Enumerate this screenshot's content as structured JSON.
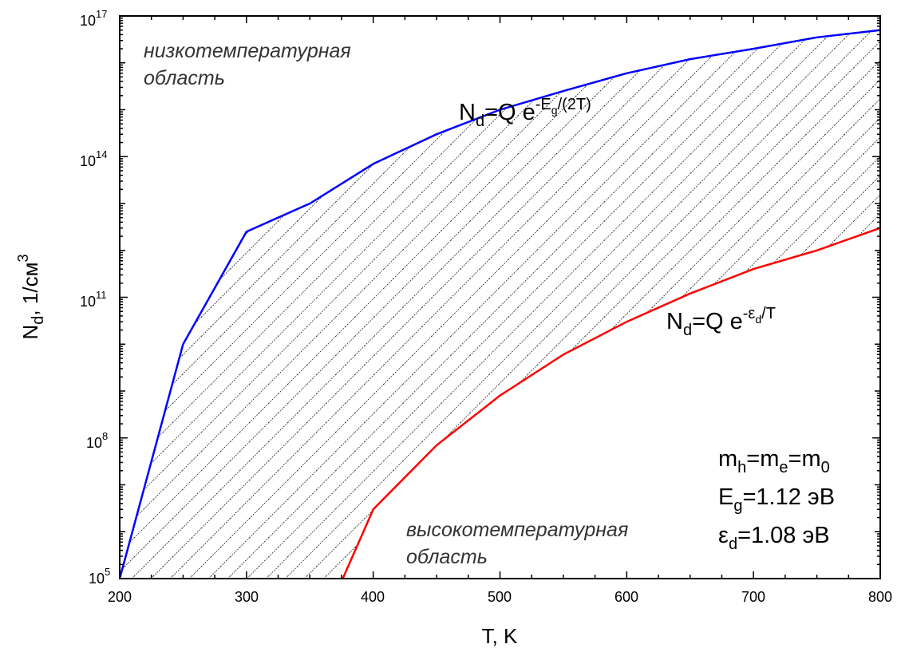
{
  "chart_data": {
    "type": "line",
    "xlabel": "T, K",
    "ylabel": {
      "main": "N",
      "sub": "d",
      "rest": ", 1/см",
      "sup": "3"
    },
    "xlim": [
      200,
      800
    ],
    "ylim": [
      100000,
      100000000000000000
    ],
    "yscale": "log",
    "x_ticks": [
      "200",
      "300",
      "400",
      "500",
      "600",
      "700",
      "800"
    ],
    "y_ticks": [
      {
        "base": "10",
        "exp": "5"
      },
      {
        "base": "10",
        "exp": "8"
      },
      {
        "base": "10",
        "exp": "11"
      },
      {
        "base": "10",
        "exp": "14"
      },
      {
        "base": "10",
        "exp": "17"
      }
    ],
    "series": [
      {
        "label_parts": {
          "a": "N",
          "a_sub": "d",
          "b": "=Q e",
          "b_sup": "-E",
          "b_sup_sub": "g",
          "b_sup_rest": "/(2T)"
        },
        "color": "#0000ff",
        "points": [
          [
            200,
            100000
          ],
          [
            250,
            10000000000
          ],
          [
            300,
            2500000000000
          ],
          [
            350,
            10000000000000
          ],
          [
            400,
            70000000000000
          ],
          [
            450,
            300000000000000
          ],
          [
            500,
            1000000000000000
          ],
          [
            550,
            2500000000000000
          ],
          [
            600,
            6000000000000000
          ],
          [
            650,
            12000000000000000
          ],
          [
            700,
            20000000000000000
          ],
          [
            750,
            35000000000000000
          ],
          [
            800,
            50000000000000000
          ]
        ]
      },
      {
        "label_parts": {
          "a": "N",
          "a_sub": "d",
          "b": "=Q e",
          "b_sup": "-ε",
          "b_sup_sub": "d",
          "b_sup_rest": "/T"
        },
        "color": "#ff0000",
        "points": [
          [
            376,
            100000
          ],
          [
            400,
            3000000
          ],
          [
            450,
            70000000
          ],
          [
            500,
            800000000
          ],
          [
            550,
            6000000000
          ],
          [
            600,
            30000000000
          ],
          [
            650,
            120000000000
          ],
          [
            700,
            400000000000
          ],
          [
            750,
            1000000000000
          ],
          [
            800,
            3000000000000
          ]
        ]
      }
    ],
    "hatch": "between series",
    "annotations": {
      "low_region": [
        "низкотемпературная",
        "область"
      ],
      "high_region": [
        "высокотемпературная",
        "область"
      ],
      "params": [
        {
          "parts": [
            "m",
            "h",
            "=m",
            "e",
            "=m",
            "0"
          ]
        },
        {
          "parts": [
            "E",
            "g",
            "=1.12 эВ"
          ]
        },
        {
          "parts": [
            "ε",
            "d",
            "=1.08 эВ"
          ]
        }
      ]
    }
  }
}
